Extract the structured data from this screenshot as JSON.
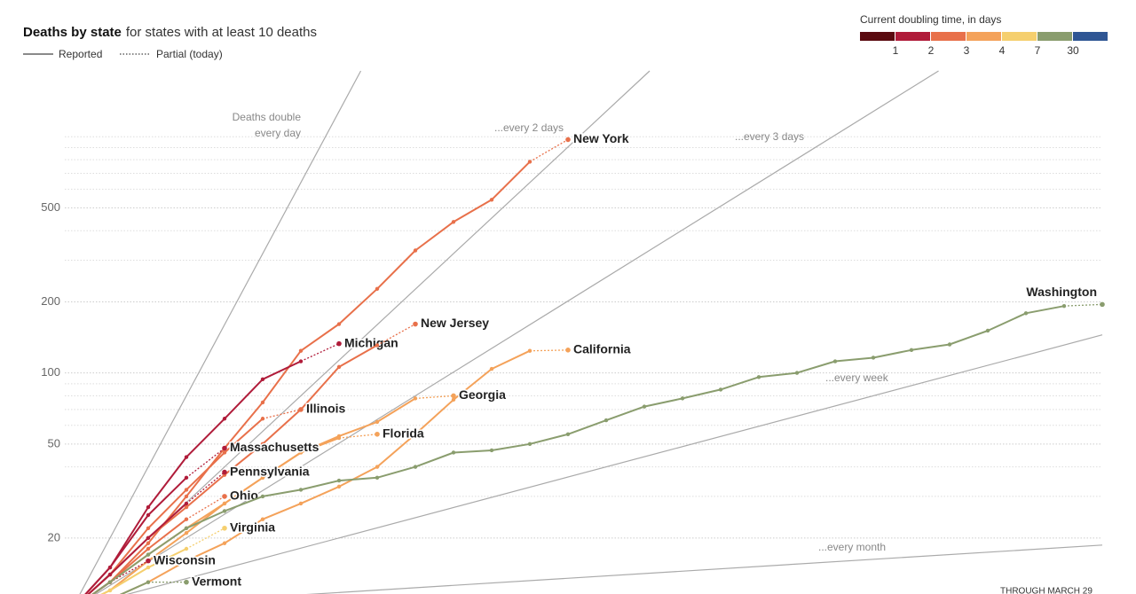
{
  "chart_data": {
    "type": "line",
    "title": "Deaths by state",
    "subtitle": "for states with at least 10 deaths",
    "line_legend": {
      "solid": "Reported",
      "dotted": "Partial (today)"
    },
    "last_point_partial": true,
    "color_legend": {
      "title": "Current doubling time, in days",
      "colors": [
        "#5a0a10",
        "#b01c3a",
        "#e8704a",
        "#f4a25a",
        "#f5cf6e",
        "#8a9d6e",
        "#2f5694"
      ],
      "ticks": [
        1,
        2,
        3,
        4,
        7,
        30
      ]
    },
    "log_scale": true,
    "grid": true,
    "xlim": [
      0,
      27
    ],
    "ylim": [
      10,
      1900
    ],
    "yticks": [
      20,
      50,
      100,
      200,
      500
    ],
    "minor_yticks": [
      30,
      40,
      60,
      70,
      80,
      90,
      300,
      400,
      600,
      700,
      800,
      900,
      1000
    ],
    "reference_lines": [
      {
        "label": [
          "Deaths double",
          "every day"
        ],
        "doubling_days": 1
      },
      {
        "label": [
          "...every 2 days"
        ],
        "doubling_days": 2
      },
      {
        "label": [
          "...every 3 days"
        ],
        "doubling_days": 3
      },
      {
        "label": [
          "...every week"
        ],
        "doubling_days": 7
      },
      {
        "label": [
          "...every month"
        ],
        "doubling_days": 30
      }
    ],
    "series": [
      {
        "name": "New York",
        "color": "#e8704a",
        "values": [
          10,
          13,
          19,
          30,
          48,
          75,
          124,
          161,
          227,
          330,
          436,
          541,
          784,
          973
        ]
      },
      {
        "name": "Michigan",
        "color": "#b01c3a",
        "values": [
          10,
          15,
          27,
          44,
          64,
          94,
          112,
          133
        ]
      },
      {
        "name": "New Jersey",
        "color": "#e8704a",
        "values": [
          10,
          14,
          20,
          27,
          37,
          50,
          70,
          106,
          131,
          161
        ]
      },
      {
        "name": "California",
        "color": "#f4a25a",
        "values": [
          10,
          11,
          13,
          16,
          19,
          24,
          28,
          33,
          40,
          55,
          77,
          104,
          124,
          125
        ]
      },
      {
        "name": "Georgia",
        "color": "#f4a25a",
        "values": [
          10,
          13,
          17,
          22,
          28,
          36,
          46,
          54,
          62,
          78,
          80
        ]
      },
      {
        "name": "Illinois",
        "color": "#e8704a",
        "values": [
          10,
          14,
          22,
          32,
          46,
          64,
          70
        ]
      },
      {
        "name": "Florida",
        "color": "#f4a25a",
        "values": [
          10,
          12,
          16,
          21,
          28,
          36,
          46,
          53,
          55
        ]
      },
      {
        "name": "Massachusetts",
        "color": "#b01c3a",
        "values": [
          10,
          15,
          25,
          36,
          48
        ]
      },
      {
        "name": "Pennsylvania",
        "color": "#b01c3a",
        "values": [
          10,
          14,
          20,
          28,
          38
        ]
      },
      {
        "name": "Ohio",
        "color": "#e8704a",
        "values": [
          10,
          13,
          18,
          24,
          30
        ]
      },
      {
        "name": "Virginia",
        "color": "#f5cf6e",
        "values": [
          10,
          12,
          15,
          18,
          22
        ]
      },
      {
        "name": "Wisconsin",
        "color": "#b01c3a",
        "values": [
          10,
          13,
          16
        ]
      },
      {
        "name": "Vermont",
        "color": "#8a9d6e",
        "values": [
          10,
          11,
          13,
          13
        ]
      },
      {
        "name": "Washington",
        "color": "#8a9d6e",
        "values": [
          10,
          13,
          17,
          22,
          26,
          30,
          32,
          35,
          36,
          40,
          46,
          47,
          50,
          55,
          63,
          72,
          78,
          85,
          96,
          100,
          112,
          116,
          125,
          132,
          151,
          179,
          192,
          195
        ]
      }
    ],
    "note": "THROUGH MARCH 29"
  }
}
